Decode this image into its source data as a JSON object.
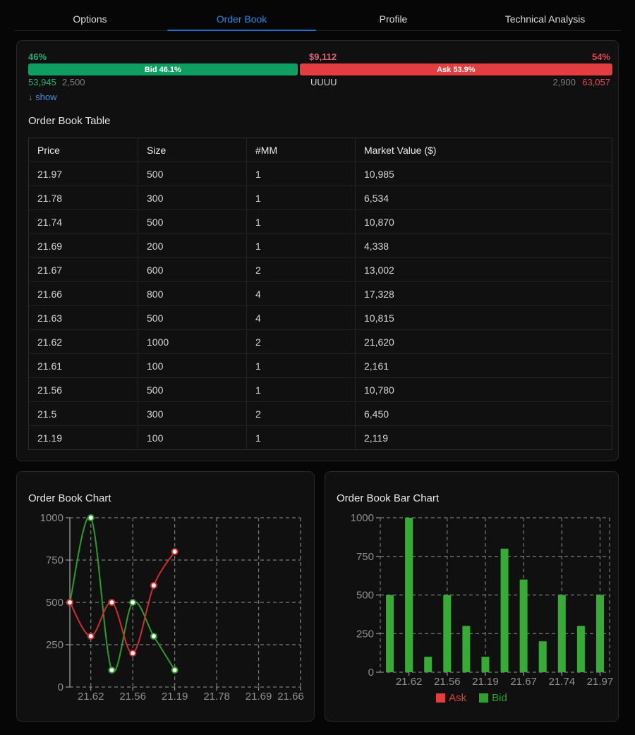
{
  "tabs": [
    {
      "label": "Options",
      "active": false
    },
    {
      "label": "Order Book",
      "active": true
    },
    {
      "label": "Profile",
      "active": false
    },
    {
      "label": "Technical Analysis",
      "active": false
    }
  ],
  "summary": {
    "bid_pct_label": "46%",
    "center_value": "$9,112",
    "ask_pct_label": "54%",
    "bid_bar_label": "Bid 46.1%",
    "ask_bar_label": "Ask 53.9%",
    "bid_bar_pct": 46.1,
    "ask_bar_pct": 53.9,
    "bid_total": "53,945",
    "bid_size": "2,500",
    "symbol": "UUUU",
    "ask_size": "2,900",
    "ask_total": "63,057"
  },
  "show_link": {
    "icon": "↓",
    "label": "show"
  },
  "table": {
    "title": "Order Book Table",
    "columns": [
      "Price",
      "Size",
      "#MM",
      "Market Value ($)"
    ],
    "rows": [
      {
        "price": "21.97",
        "size": "500",
        "mm": "1",
        "market_value": "10,985",
        "side": "ask"
      },
      {
        "price": "21.78",
        "size": "300",
        "mm": "1",
        "market_value": "6,534",
        "side": "ask"
      },
      {
        "price": "21.74",
        "size": "500",
        "mm": "1",
        "market_value": "10,870",
        "side": "ask"
      },
      {
        "price": "21.69",
        "size": "200",
        "mm": "1",
        "market_value": "4,338",
        "side": "ask"
      },
      {
        "price": "21.67",
        "size": "600",
        "mm": "2",
        "market_value": "13,002",
        "side": "ask"
      },
      {
        "price": "21.66",
        "size": "800",
        "mm": "4",
        "market_value": "17,328",
        "side": "ask"
      },
      {
        "price": "21.63",
        "size": "500",
        "mm": "4",
        "market_value": "10,815",
        "side": "bid"
      },
      {
        "price": "21.62",
        "size": "1000",
        "mm": "2",
        "market_value": "21,620",
        "side": "bid"
      },
      {
        "price": "21.61",
        "size": "100",
        "mm": "1",
        "market_value": "2,161",
        "side": "bid"
      },
      {
        "price": "21.56",
        "size": "500",
        "mm": "1",
        "market_value": "10,780",
        "side": "bid"
      },
      {
        "price": "21.5",
        "size": "300",
        "mm": "2",
        "market_value": "6,450",
        "side": "bid"
      },
      {
        "price": "21.19",
        "size": "100",
        "mm": "1",
        "market_value": "2,119",
        "side": "bid"
      }
    ]
  },
  "colors": {
    "accent_blue": "#2a87e0",
    "bid_bar_green": "#0e9e62",
    "ask_bar_red": "#e43d40",
    "chart_red": "#d62a2e",
    "chart_green": "#2b9d2b",
    "bar_green": "#35ad35",
    "legend_ask_red": "#e23d3d",
    "legend_bid_green": "#2ca42c",
    "grid_gray": "#7b7b7b",
    "axis_label_gray": "#8f8f8f"
  },
  "chart_data": [
    {
      "type": "line",
      "title": "Order Book Chart",
      "x_categories": [
        "21.63",
        "21.62",
        "21.61",
        "21.56",
        "21.5",
        "21.19",
        "21.97",
        "21.78",
        "21.74",
        "21.69",
        "21.67",
        "21.66"
      ],
      "x_tick_labels": [
        "21.62",
        "21.56",
        "21.19",
        "21.78",
        "21.69",
        "21.66"
      ],
      "series": [
        {
          "name": "Bid",
          "color": "#2b9d2b",
          "values": [
            500,
            1000,
            100,
            500,
            300,
            100
          ]
        },
        {
          "name": "Ask",
          "color": "#d62a2e",
          "values": [
            500,
            300,
            500,
            200,
            600,
            800
          ]
        }
      ],
      "ylim": [
        0,
        1000
      ],
      "yticks": [
        0,
        250,
        500,
        750,
        1000
      ],
      "grid": true,
      "legend_position": "none"
    },
    {
      "type": "bar",
      "title": "Order Book Bar Chart",
      "categories": [
        "21.63",
        "21.62",
        "21.61",
        "21.56",
        "21.5",
        "21.19",
        "21.66",
        "21.67",
        "21.69",
        "21.74",
        "21.78",
        "21.97"
      ],
      "x_tick_labels": [
        "21.62",
        "21.56",
        "21.19",
        "21.67",
        "21.74",
        "21.97"
      ],
      "values": [
        500,
        1000,
        100,
        500,
        300,
        100,
        800,
        600,
        200,
        500,
        300,
        500
      ],
      "bar_color": "#35ad35",
      "legend": [
        {
          "label": "Ask",
          "color": "#e23d3d"
        },
        {
          "label": "Bid",
          "color": "#2ca42c"
        }
      ],
      "ylim": [
        0,
        1000
      ],
      "yticks": [
        0,
        250,
        500,
        750,
        1000
      ],
      "grid": true,
      "legend_position": "bottom"
    }
  ]
}
